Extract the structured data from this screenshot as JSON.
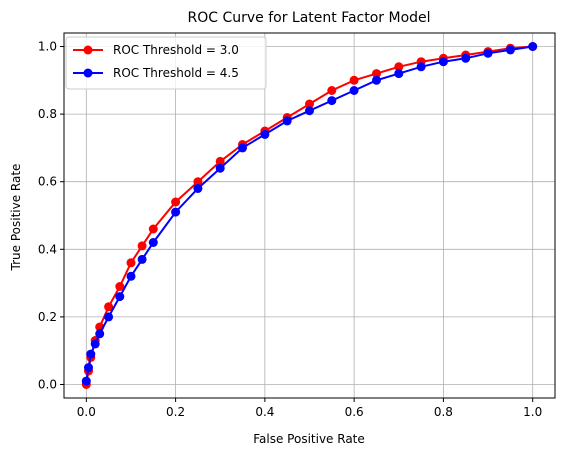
{
  "chart_data": {
    "type": "line",
    "title": "ROC Curve for Latent Factor Model",
    "xlabel": "False Positive Rate",
    "ylabel": "True Positive Rate",
    "xlim": [
      -0.05,
      1.05
    ],
    "ylim": [
      -0.04,
      1.04
    ],
    "xticks": [
      "0.0",
      "0.2",
      "0.4",
      "0.6",
      "0.8",
      "1.0"
    ],
    "yticks": [
      "0.0",
      "0.2",
      "0.4",
      "0.6",
      "0.8",
      "1.0"
    ],
    "grid": true,
    "legend_position": "upper-left",
    "marker": "circle",
    "series": [
      {
        "name": "ROC Threshold = 3.0",
        "color": "#ff0000",
        "x": [
          0.0,
          0.005,
          0.01,
          0.02,
          0.03,
          0.05,
          0.075,
          0.1,
          0.125,
          0.15,
          0.2,
          0.25,
          0.3,
          0.35,
          0.4,
          0.45,
          0.5,
          0.55,
          0.6,
          0.65,
          0.7,
          0.75,
          0.8,
          0.85,
          0.9,
          0.95,
          1.0
        ],
        "y": [
          0.0,
          0.04,
          0.08,
          0.13,
          0.17,
          0.23,
          0.29,
          0.36,
          0.41,
          0.46,
          0.54,
          0.6,
          0.66,
          0.71,
          0.75,
          0.79,
          0.83,
          0.87,
          0.9,
          0.92,
          0.94,
          0.955,
          0.965,
          0.975,
          0.985,
          0.995,
          1.0
        ]
      },
      {
        "name": "ROC Threshold = 4.5",
        "color": "#0000ff",
        "x": [
          0.0,
          0.005,
          0.01,
          0.02,
          0.03,
          0.05,
          0.075,
          0.1,
          0.125,
          0.15,
          0.2,
          0.25,
          0.3,
          0.35,
          0.4,
          0.45,
          0.5,
          0.55,
          0.6,
          0.65,
          0.7,
          0.75,
          0.8,
          0.85,
          0.9,
          0.95,
          1.0
        ],
        "y": [
          0.01,
          0.05,
          0.09,
          0.12,
          0.15,
          0.2,
          0.26,
          0.32,
          0.37,
          0.42,
          0.51,
          0.58,
          0.64,
          0.7,
          0.74,
          0.78,
          0.81,
          0.84,
          0.87,
          0.9,
          0.92,
          0.94,
          0.955,
          0.965,
          0.98,
          0.99,
          1.0
        ]
      }
    ]
  }
}
